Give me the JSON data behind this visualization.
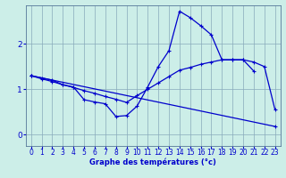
{
  "xlabel": "Graphe des températures (°c)",
  "background_color": "#cceee8",
  "line_color": "#0000cc",
  "grid_color": "#88aabb",
  "xlim": [
    -0.5,
    23.5
  ],
  "ylim": [
    -0.25,
    2.85
  ],
  "xticks": [
    0,
    1,
    2,
    3,
    4,
    5,
    6,
    7,
    8,
    9,
    10,
    11,
    12,
    13,
    14,
    15,
    16,
    17,
    18,
    19,
    20,
    21,
    22,
    23
  ],
  "yticks": [
    0,
    1,
    2
  ],
  "series": [
    {
      "x": [
        0,
        1,
        2,
        3,
        4,
        5,
        6,
        7,
        8,
        9,
        10,
        11,
        12,
        13,
        14,
        15,
        16,
        17,
        18,
        19,
        20,
        21,
        22,
        23
      ],
      "y": [
        1.3,
        1.25,
        1.2,
        1.1,
        1.05,
        0.77,
        0.72,
        0.68,
        0.4,
        0.42,
        0.63,
        1.05,
        1.5,
        1.85,
        2.72,
        2.58,
        2.4,
        2.2,
        1.65,
        1.65,
        1.65,
        1.4,
        null,
        null
      ]
    },
    {
      "x": [
        0,
        1,
        2,
        3,
        4,
        5,
        6,
        7,
        8,
        9,
        10,
        11,
        12,
        13,
        14,
        15,
        16,
        17,
        18,
        19,
        20,
        21,
        22,
        23
      ],
      "y": [
        1.3,
        1.23,
        1.17,
        1.1,
        1.04,
        0.97,
        0.91,
        0.84,
        0.78,
        0.71,
        0.86,
        1.0,
        1.14,
        1.28,
        1.42,
        1.48,
        1.55,
        1.6,
        1.65,
        1.65,
        1.65,
        1.6,
        1.5,
        0.55
      ]
    },
    {
      "x": [
        0,
        23
      ],
      "y": [
        1.3,
        0.18
      ]
    }
  ]
}
